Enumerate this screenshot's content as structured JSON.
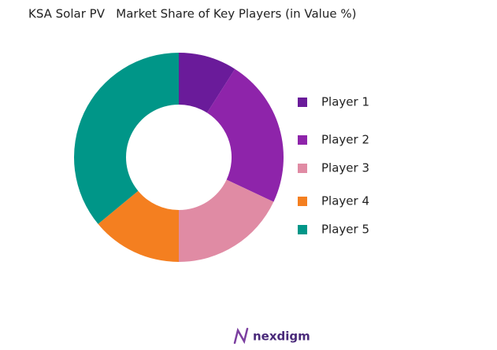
{
  "chart_data": {
    "type": "donut",
    "title": "KSA Solar PV   Market Share of Key Players (in Value %)",
    "categories": [
      "Player 1",
      "Player 2",
      "Player 3",
      "Player 4",
      "Player 5"
    ],
    "values": [
      9,
      23,
      18,
      14,
      36
    ],
    "colors": [
      "#6a1b9a",
      "#8e24aa",
      "#e08ba4",
      "#f47f20",
      "#009688"
    ],
    "legend": "right"
  },
  "footer": {
    "brand": "nexdigm"
  }
}
